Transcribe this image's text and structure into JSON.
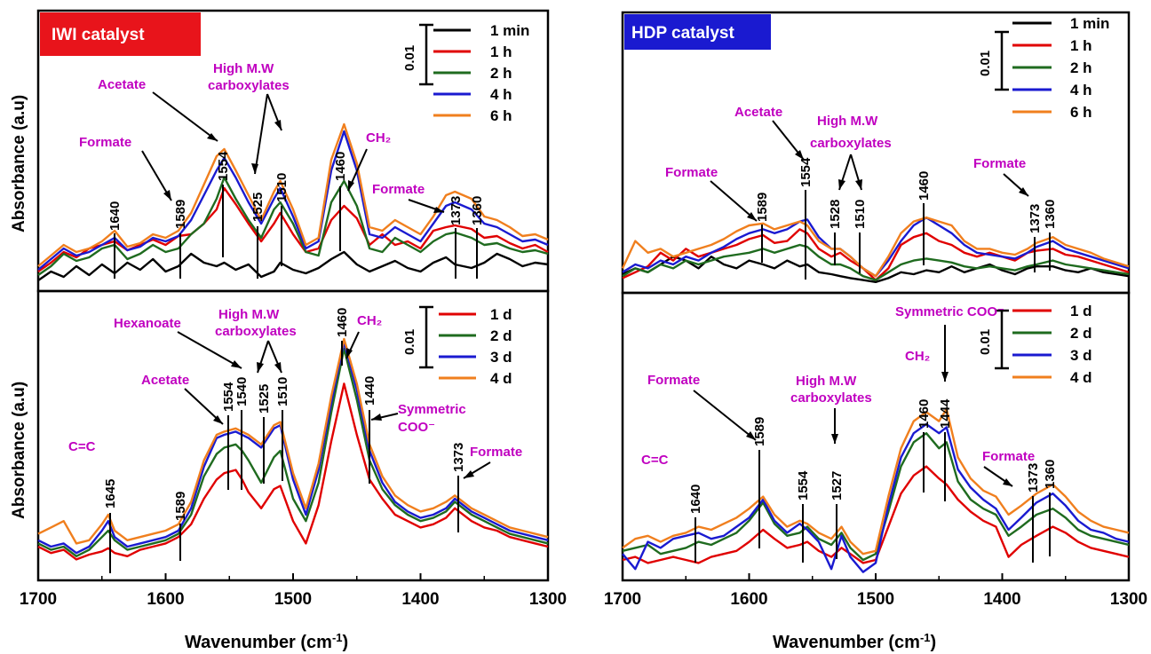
{
  "chart_data": [
    {
      "type": "line",
      "panel": "IWI catalyst, time series",
      "badge": {
        "label": "IWI catalyst",
        "color": "#e8141b"
      },
      "ylabel": "Absorbance (a.u)",
      "xlim": [
        1700,
        1300
      ],
      "scale_bar": "0.01",
      "x": [
        1700,
        1690,
        1680,
        1670,
        1660,
        1650,
        1640,
        1630,
        1620,
        1610,
        1600,
        1590,
        1580,
        1570,
        1560,
        1554,
        1545,
        1535,
        1525,
        1515,
        1510,
        1500,
        1490,
        1480,
        1470,
        1460,
        1450,
        1440,
        1430,
        1420,
        1410,
        1400,
        1390,
        1380,
        1373,
        1360,
        1350,
        1340,
        1330,
        1320,
        1310,
        1300
      ],
      "series": [
        {
          "name": "1 min",
          "color": "#000000",
          "values": [
            0.0,
            0.5,
            0.2,
            0.8,
            0.3,
            0.9,
            0.4,
            1.0,
            0.6,
            1.2,
            0.5,
            0.8,
            1.5,
            1.0,
            0.8,
            1.0,
            0.6,
            0.9,
            0.2,
            0.5,
            1.0,
            0.6,
            0.4,
            0.7,
            1.2,
            1.6,
            0.9,
            0.5,
            0.8,
            1.1,
            0.7,
            0.5,
            1.0,
            1.3,
            0.9,
            0.7,
            1.0,
            1.5,
            1.2,
            0.8,
            1.0,
            0.9
          ]
        },
        {
          "name": "1 h",
          "color": "#e00000",
          "values": [
            0.5,
            1.0,
            1.6,
            1.3,
            1.8,
            2.0,
            2.2,
            1.7,
            2.0,
            2.3,
            2.0,
            2.5,
            2.6,
            3.2,
            4.0,
            5.2,
            4.3,
            3.2,
            2.2,
            3.2,
            3.8,
            2.6,
            1.6,
            1.8,
            3.4,
            4.2,
            3.5,
            2.0,
            2.6,
            2.0,
            2.2,
            1.8,
            2.8,
            3.0,
            3.1,
            2.9,
            2.4,
            2.5,
            2.1,
            1.8,
            2.0,
            1.6
          ]
        },
        {
          "name": "2 h",
          "color": "#1f6b1f",
          "values": [
            0.3,
            0.8,
            1.5,
            1.1,
            1.3,
            1.8,
            2.0,
            1.2,
            1.5,
            2.0,
            1.6,
            1.8,
            2.6,
            3.2,
            4.6,
            5.8,
            4.6,
            3.4,
            2.4,
            4.0,
            4.4,
            3.2,
            1.6,
            1.4,
            4.4,
            5.6,
            4.2,
            1.8,
            1.6,
            2.4,
            2.0,
            1.6,
            2.2,
            2.6,
            2.7,
            2.4,
            2.0,
            2.1,
            1.8,
            1.6,
            1.7,
            1.5
          ]
        },
        {
          "name": "4 h",
          "color": "#1a1ad0",
          "values": [
            0.6,
            1.2,
            1.8,
            1.4,
            1.6,
            2.0,
            2.4,
            1.7,
            1.9,
            2.4,
            2.2,
            2.5,
            3.4,
            4.8,
            6.2,
            6.9,
            5.8,
            4.4,
            3.2,
            4.6,
            5.2,
            3.6,
            1.8,
            2.2,
            6.2,
            8.4,
            6.2,
            2.6,
            2.4,
            3.0,
            2.6,
            2.2,
            3.2,
            4.2,
            4.4,
            4.0,
            3.2,
            3.0,
            2.6,
            2.2,
            2.3,
            2.0
          ]
        },
        {
          "name": "6 h",
          "color": "#f07f1e",
          "values": [
            0.8,
            1.4,
            2.0,
            1.6,
            1.8,
            2.2,
            2.8,
            1.9,
            2.1,
            2.6,
            2.4,
            2.8,
            3.8,
            5.4,
            7.0,
            7.4,
            6.2,
            4.8,
            3.4,
            5.0,
            5.6,
            4.0,
            2.0,
            2.4,
            6.8,
            8.8,
            6.6,
            3.0,
            2.8,
            3.4,
            3.0,
            2.6,
            3.6,
            4.8,
            5.0,
            4.6,
            3.6,
            3.4,
            3.0,
            2.5,
            2.6,
            2.3
          ]
        }
      ],
      "peaks": [
        "1640",
        "1589",
        "1554",
        "1525",
        "1510",
        "1460",
        "1373",
        "1360"
      ],
      "annotations": [
        "Acetate",
        "High M.W carboxylates",
        "Formate",
        "CH₂",
        "Formate"
      ]
    },
    {
      "type": "line",
      "panel": "IWI catalyst, day series",
      "ylabel": "Absorbance (a.u)",
      "xlabel": "Wavenumber (cm⁻¹)",
      "xlim": [
        1700,
        1300
      ],
      "xticks": [
        "1700",
        "1600",
        "1500",
        "1400",
        "1300"
      ],
      "scale_bar": "0.01",
      "x": [
        1700,
        1690,
        1680,
        1670,
        1660,
        1650,
        1645,
        1640,
        1630,
        1620,
        1610,
        1600,
        1590,
        1580,
        1570,
        1560,
        1554,
        1545,
        1540,
        1535,
        1525,
        1515,
        1510,
        1500,
        1490,
        1480,
        1470,
        1460,
        1450,
        1440,
        1430,
        1420,
        1410,
        1400,
        1390,
        1380,
        1373,
        1360,
        1350,
        1340,
        1330,
        1320,
        1310,
        1300
      ],
      "series": [
        {
          "name": "1 d",
          "color": "#e00000",
          "values": [
            1.0,
            0.6,
            0.8,
            0.2,
            0.5,
            0.7,
            0.9,
            0.6,
            0.4,
            0.8,
            1.0,
            1.2,
            1.6,
            2.4,
            4.0,
            5.2,
            5.6,
            5.8,
            5.2,
            4.4,
            3.4,
            4.6,
            4.8,
            2.6,
            1.2,
            3.6,
            7.6,
            11.2,
            8.0,
            5.2,
            4.0,
            3.0,
            2.6,
            2.2,
            2.4,
            2.8,
            3.4,
            2.6,
            2.2,
            2.0,
            1.6,
            1.4,
            1.2,
            1.0
          ]
        },
        {
          "name": "2 d",
          "color": "#1f6b1f",
          "values": [
            1.2,
            0.8,
            1.0,
            0.4,
            0.8,
            1.6,
            2.0,
            1.4,
            0.8,
            1.0,
            1.2,
            1.4,
            1.8,
            3.0,
            5.4,
            6.8,
            7.2,
            7.4,
            7.0,
            6.4,
            5.0,
            6.6,
            7.0,
            4.0,
            2.6,
            5.0,
            9.4,
            13.4,
            10.2,
            6.4,
            4.6,
            3.6,
            3.0,
            2.6,
            2.8,
            3.2,
            3.8,
            3.0,
            2.6,
            2.2,
            1.8,
            1.6,
            1.4,
            1.2
          ]
        },
        {
          "name": "3 d",
          "color": "#1a1ad0",
          "values": [
            1.4,
            1.0,
            1.2,
            0.6,
            1.0,
            2.0,
            2.6,
            1.6,
            1.0,
            1.2,
            1.4,
            1.6,
            2.0,
            3.4,
            6.0,
            7.8,
            8.0,
            8.2,
            8.0,
            7.8,
            7.2,
            8.4,
            8.6,
            5.2,
            3.0,
            5.8,
            10.0,
            13.8,
            10.8,
            7.0,
            5.0,
            3.8,
            3.2,
            2.8,
            3.0,
            3.4,
            4.0,
            3.2,
            2.8,
            2.4,
            2.0,
            1.8,
            1.6,
            1.4
          ]
        },
        {
          "name": "4 d",
          "color": "#f07f1e",
          "values": [
            1.8,
            2.2,
            2.6,
            1.2,
            1.4,
            2.4,
            3.0,
            2.0,
            1.4,
            1.6,
            1.8,
            2.0,
            2.4,
            3.8,
            6.4,
            8.0,
            8.2,
            8.4,
            8.2,
            8.0,
            7.4,
            8.6,
            8.8,
            5.6,
            3.4,
            6.2,
            10.4,
            14.0,
            11.2,
            7.4,
            5.4,
            4.2,
            3.6,
            3.2,
            3.4,
            3.8,
            4.2,
            3.4,
            3.0,
            2.6,
            2.2,
            2.0,
            1.8,
            1.6
          ]
        }
      ],
      "peaks": [
        "1645",
        "1589",
        "1554",
        "1540",
        "1525",
        "1510",
        "1460",
        "1440",
        "1373"
      ],
      "annotations": [
        "C=C",
        "Acetate",
        "Hexanoate",
        "High M.W carboxylates",
        "CH₂",
        "Symmetric COO⁻",
        "Formate"
      ]
    },
    {
      "type": "line",
      "panel": "HDP catalyst, time series",
      "badge": {
        "label": "HDP catalyst",
        "color": "#1a1ad0"
      },
      "xlim": [
        1700,
        1300
      ],
      "scale_bar": "0.01",
      "x": [
        1700,
        1690,
        1680,
        1670,
        1660,
        1650,
        1640,
        1630,
        1620,
        1610,
        1600,
        1589,
        1580,
        1570,
        1560,
        1554,
        1545,
        1535,
        1528,
        1520,
        1510,
        1500,
        1490,
        1480,
        1470,
        1460,
        1450,
        1440,
        1430,
        1420,
        1410,
        1400,
        1390,
        1380,
        1373,
        1360,
        1350,
        1340,
        1330,
        1320,
        1310,
        1300
      ],
      "series": [
        {
          "name": "1 min",
          "color": "#000000",
          "values": [
            0.5,
            0.8,
            0.6,
            1.0,
            1.4,
            1.2,
            0.8,
            1.4,
            1.0,
            0.8,
            1.2,
            1.0,
            0.8,
            1.2,
            0.9,
            1.0,
            0.6,
            0.5,
            0.4,
            0.3,
            0.2,
            0.1,
            0.3,
            0.6,
            0.5,
            0.7,
            0.6,
            0.9,
            0.6,
            0.8,
            1.0,
            0.7,
            0.5,
            0.8,
            0.9,
            0.9,
            0.7,
            0.6,
            0.8,
            0.6,
            0.5,
            0.4
          ]
        },
        {
          "name": "1 h",
          "color": "#e00000",
          "values": [
            0.3,
            0.6,
            0.9,
            1.6,
            1.2,
            1.8,
            1.4,
            1.6,
            1.8,
            2.0,
            2.3,
            2.5,
            2.1,
            2.2,
            2.8,
            2.6,
            1.8,
            1.4,
            1.6,
            1.2,
            0.8,
            0.2,
            0.8,
            2.0,
            2.4,
            2.6,
            2.2,
            2.0,
            1.6,
            1.4,
            1.6,
            1.4,
            1.2,
            1.6,
            1.7,
            1.8,
            1.5,
            1.4,
            1.2,
            1.0,
            0.8,
            0.6
          ]
        },
        {
          "name": "2 h",
          "color": "#1f6b1f",
          "values": [
            0.4,
            0.8,
            0.6,
            1.0,
            0.8,
            1.2,
            1.0,
            1.2,
            1.4,
            1.5,
            1.6,
            1.8,
            1.6,
            1.8,
            2.0,
            1.9,
            1.4,
            1.0,
            1.0,
            0.8,
            0.4,
            0.2,
            0.6,
            1.0,
            1.2,
            1.3,
            1.2,
            1.1,
            0.9,
            0.8,
            0.9,
            0.8,
            0.7,
            0.9,
            1.0,
            1.2,
            1.0,
            0.9,
            0.8,
            0.7,
            0.6,
            0.5
          ]
        },
        {
          "name": "4 h",
          "color": "#1a1ad0",
          "values": [
            0.6,
            1.0,
            0.8,
            1.2,
            1.0,
            1.4,
            1.2,
            1.6,
            1.9,
            2.3,
            2.6,
            2.8,
            2.6,
            2.8,
            3.2,
            3.3,
            2.4,
            1.8,
            1.8,
            1.4,
            0.8,
            0.4,
            1.2,
            2.2,
            3.0,
            3.4,
            3.0,
            2.6,
            2.0,
            1.6,
            1.5,
            1.4,
            1.3,
            1.6,
            1.9,
            2.2,
            1.8,
            1.6,
            1.4,
            1.2,
            1.0,
            0.8
          ]
        },
        {
          "name": "6 h",
          "color": "#f07f1e",
          "values": [
            0.8,
            2.2,
            1.6,
            1.8,
            1.4,
            1.6,
            1.8,
            2.0,
            2.3,
            2.7,
            3.0,
            3.1,
            2.8,
            3.0,
            3.2,
            3.0,
            2.2,
            1.8,
            1.8,
            1.4,
            0.8,
            0.4,
            1.4,
            2.6,
            3.2,
            3.4,
            3.2,
            3.0,
            2.2,
            1.8,
            1.8,
            1.6,
            1.5,
            1.8,
            2.1,
            2.4,
            2.0,
            1.8,
            1.6,
            1.3,
            1.1,
            0.9
          ]
        }
      ],
      "peaks": [
        "1589",
        "1554",
        "1528",
        "1510",
        "1460",
        "1373",
        "1360"
      ],
      "annotations": [
        "Formate",
        "Acetate",
        "High M.W carboxylates",
        "Formate"
      ]
    },
    {
      "type": "line",
      "panel": "HDP catalyst, day series",
      "xlabel": "Wavenumber (cm⁻¹)",
      "xlim": [
        1700,
        1300
      ],
      "xticks": [
        "1700",
        "1600",
        "1500",
        "1400",
        "1300"
      ],
      "scale_bar": "0.01",
      "x": [
        1700,
        1690,
        1680,
        1670,
        1660,
        1650,
        1640,
        1630,
        1620,
        1610,
        1600,
        1589,
        1580,
        1570,
        1560,
        1554,
        1545,
        1535,
        1527,
        1520,
        1510,
        1500,
        1490,
        1480,
        1470,
        1460,
        1450,
        1444,
        1435,
        1425,
        1415,
        1405,
        1395,
        1385,
        1373,
        1360,
        1350,
        1340,
        1330,
        1320,
        1310,
        1300
      ],
      "series": [
        {
          "name": "1 d",
          "color": "#e00000",
          "values": [
            1.0,
            1.2,
            0.8,
            1.0,
            1.2,
            1.0,
            0.8,
            1.2,
            1.4,
            1.6,
            2.2,
            3.0,
            2.4,
            1.8,
            2.0,
            2.2,
            1.6,
            1.2,
            1.8,
            1.4,
            0.8,
            1.0,
            3.2,
            5.4,
            6.6,
            7.2,
            6.4,
            6.0,
            5.0,
            4.2,
            3.6,
            3.2,
            1.2,
            2.0,
            2.6,
            3.2,
            2.8,
            2.2,
            1.8,
            1.6,
            1.4,
            1.2
          ]
        },
        {
          "name": "2 d",
          "color": "#1f6b1f",
          "values": [
            1.6,
            1.8,
            2.0,
            1.4,
            1.6,
            1.8,
            2.2,
            2.0,
            2.4,
            2.8,
            3.6,
            4.8,
            3.4,
            2.6,
            2.8,
            3.2,
            2.4,
            2.0,
            2.8,
            1.8,
            1.0,
            1.4,
            4.2,
            7.2,
            8.8,
            9.4,
            8.4,
            8.8,
            6.2,
            5.0,
            4.4,
            4.0,
            2.6,
            3.2,
            4.0,
            4.4,
            3.8,
            3.0,
            2.6,
            2.4,
            2.2,
            2.0
          ]
        },
        {
          "name": "3 d",
          "color": "#1a1ad0",
          "values": [
            1.4,
            0.4,
            2.2,
            1.8,
            2.4,
            2.6,
            2.8,
            2.4,
            2.6,
            3.2,
            3.8,
            5.0,
            3.6,
            2.8,
            3.4,
            3.0,
            2.2,
            0.4,
            2.6,
            1.2,
            0.2,
            0.8,
            4.6,
            7.8,
            9.4,
            10.0,
            9.4,
            9.8,
            7.0,
            5.8,
            5.0,
            4.4,
            3.0,
            3.8,
            4.8,
            5.4,
            4.6,
            3.6,
            3.0,
            2.8,
            2.4,
            2.2
          ]
        },
        {
          "name": "4 d",
          "color": "#f07f1e",
          "values": [
            1.8,
            2.4,
            2.6,
            2.2,
            2.6,
            2.8,
            3.2,
            3.0,
            3.4,
            3.8,
            4.4,
            5.2,
            4.0,
            3.2,
            3.6,
            3.4,
            2.8,
            2.4,
            3.2,
            2.2,
            1.4,
            1.6,
            5.2,
            8.4,
            10.2,
            10.8,
            10.2,
            11.0,
            7.8,
            6.4,
            5.6,
            5.2,
            4.0,
            4.6,
            5.4,
            6.0,
            5.2,
            4.2,
            3.6,
            3.2,
            3.0,
            2.8
          ]
        }
      ],
      "peaks": [
        "1640",
        "1589",
        "1554",
        "1527",
        "1460",
        "1444",
        "1373",
        "1360"
      ],
      "annotations": [
        "Formate",
        "C=C",
        "High M.W carboxylates",
        "CH₂",
        "Symmetric COO⁻",
        "Formate"
      ]
    }
  ]
}
